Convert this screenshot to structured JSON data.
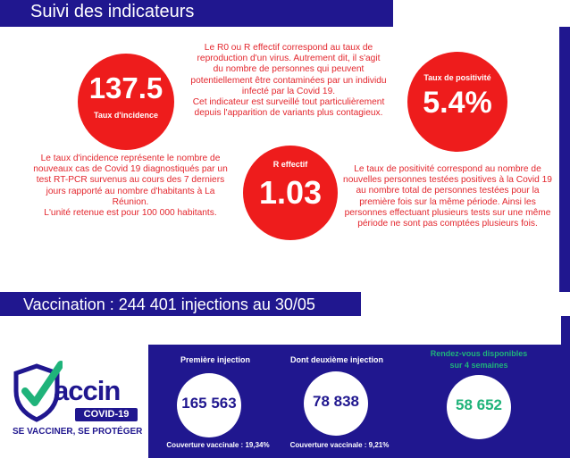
{
  "header": {
    "title": "Suivi des indicateurs"
  },
  "incidence": {
    "value": "137.5",
    "label": "Taux d'incidence"
  },
  "positivite": {
    "value": "5.4%",
    "label": "Taux de positivité"
  },
  "r_effectif": {
    "value": "1.03",
    "label": "R effectif"
  },
  "descriptions": {
    "r0": [
      "Le R0 ou R effectif correspond au taux de",
      "reproduction d'un virus. Autrement dit, il s'agit",
      "du nombre de personnes qui peuvent",
      "potentiellement être contaminées par un individu",
      "infecté par la Covid 19.",
      "Cet indicateur est surveillé tout particulièrement",
      "depuis l'apparition de variants plus contagieux."
    ],
    "incidence": [
      "Le taux d'incidence représente le nombre de",
      "nouveaux cas de Covid 19 diagnostiqués par un",
      "test  RT-PCR survenus au cours des 7 derniers",
      "jours rapporté au nombre d'habitants à La",
      "Réunion.",
      "L'unité retenue est pour 100 000 habitants."
    ],
    "positivite": [
      "Le taux de positivité correspond au nombre de",
      "nouvelles personnes testées positives à la Covid 19",
      "au nombre total de personnes testées pour la",
      "première fois sur la même période. Ainsi les",
      "personnes effectuant plusieurs tests sur une même",
      "période ne sont pas comptées plusieurs fois."
    ]
  },
  "vaccination": {
    "title": "Vaccination : 244 401 injections au 30/05",
    "first": {
      "title": "Première injection",
      "value": "165 563",
      "footer": "Couverture vaccinale : 19,34%"
    },
    "second": {
      "title": "Dont deuxième injection",
      "value": "78 838",
      "footer": "Couverture vaccinale : 9,21%"
    },
    "appointments": {
      "title_line1": "Rendez-vous disponibles",
      "title_line2": "sur 4 semaines",
      "value": "58 652"
    }
  },
  "logo": {
    "word": "accin",
    "badge": "COVID-19",
    "tagline": "SE VACCINER, SE PROTÉGER"
  },
  "colors": {
    "navy": "#20178f",
    "red": "#ee1c1c",
    "text_red": "#e3262d",
    "green": "#1fb37a"
  },
  "icons": {
    "logo_shield": "shield-check-icon"
  }
}
